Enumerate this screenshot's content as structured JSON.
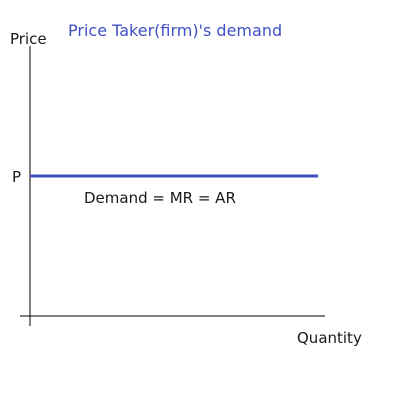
{
  "colors": {
    "demand_line": "#3f4fc6",
    "title": "#3f4fc6",
    "axis": "#000000",
    "text": "#1a1a1a"
  },
  "chart_data": {
    "type": "line",
    "title": "Price Taker(firm)'s demand",
    "xlabel": "Quantity",
    "ylabel": "Price",
    "ytick_label": "P",
    "curve_label": "Demand = MR = AR",
    "x": [
      0,
      1
    ],
    "y": [
      0.5,
      0.5
    ],
    "xlim": [
      0,
      1
    ],
    "ylim": [
      0,
      1
    ],
    "grid": false
  }
}
